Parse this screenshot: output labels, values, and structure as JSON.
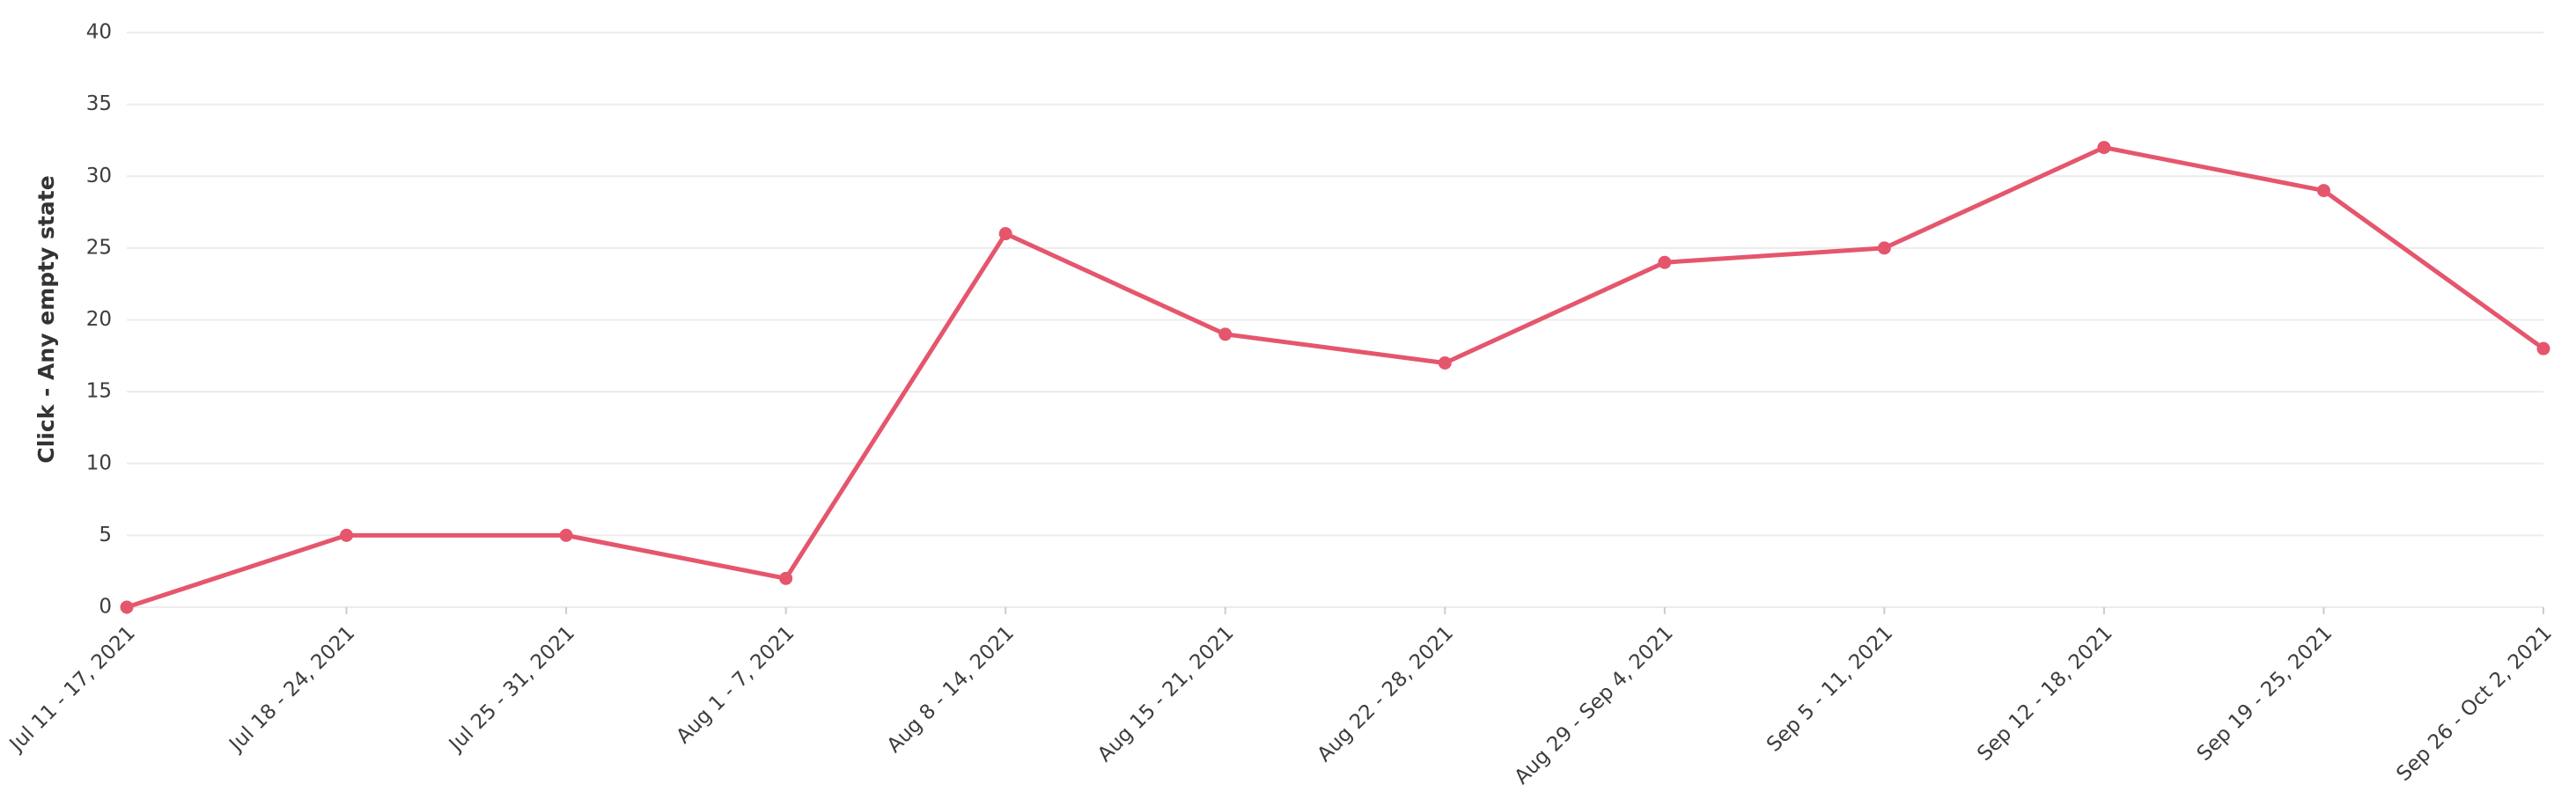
{
  "chart_data": {
    "type": "line",
    "y_label": "Click - Any empty state",
    "categories": [
      "Jul 11 - 17, 2021",
      "Jul 18 - 24, 2021",
      "Jul 25 - 31, 2021",
      "Aug 1 - 7, 2021",
      "Aug 8 - 14, 2021",
      "Aug 15 - 21, 2021",
      "Aug 22 - 28, 2021",
      "Aug 29 - Sep 4, 2021",
      "Sep 5 - 11, 2021",
      "Sep 12 - 18, 2021",
      "Sep 19 - 25, 2021",
      "Sep 26 - Oct 2, 2021"
    ],
    "values": [
      0,
      5,
      5,
      2,
      26,
      19,
      17,
      24,
      25,
      32,
      29,
      18
    ],
    "color": "#e5566c",
    "ylim": [
      0,
      40
    ],
    "yticks": [
      0,
      5,
      10,
      15,
      20,
      25,
      30,
      35,
      40
    ],
    "grid": true
  }
}
